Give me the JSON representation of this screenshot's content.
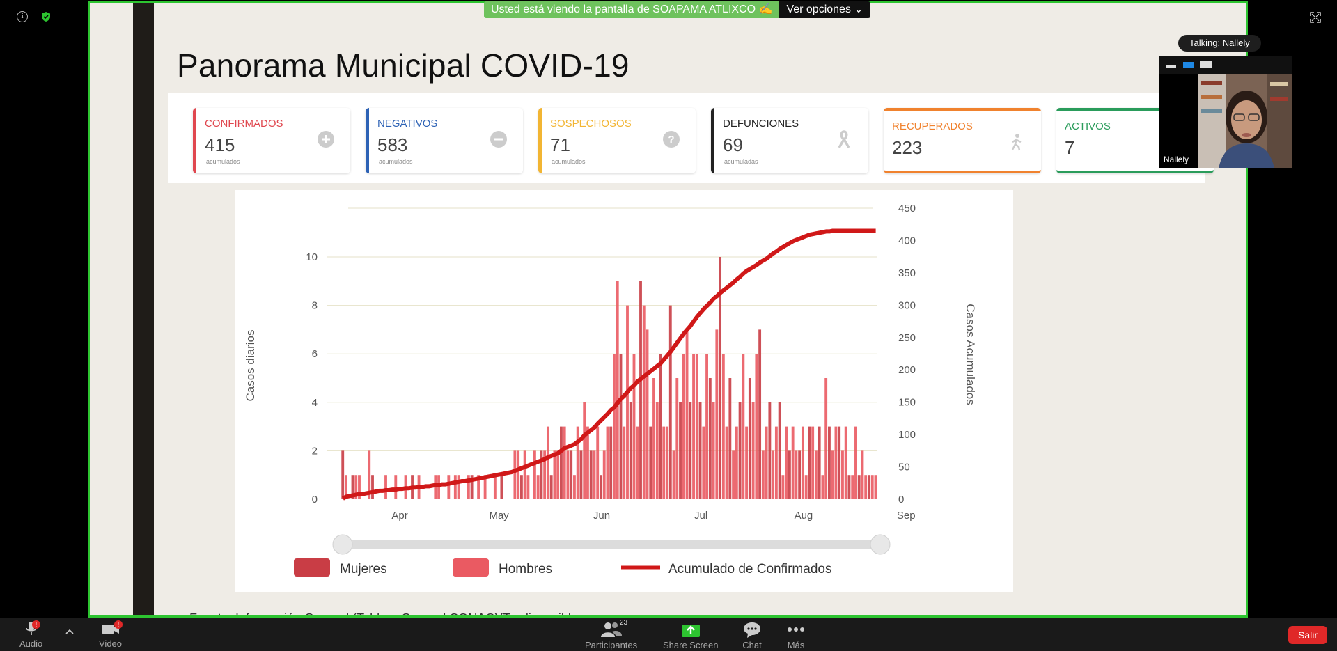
{
  "banner": {
    "text": "Usted está viendo la pantalla de SOAPAMA ATLIXCO",
    "options_label": "Ver opciones"
  },
  "slide": {
    "title": "Panorama Municipal COVID-19",
    "footer": "Fuente: Información General (Tablero General CONACYT - disponible en"
  },
  "cards": [
    {
      "label": "CONFIRMADOS",
      "value": "415",
      "sub": "acumulados",
      "color": "#e0474f",
      "icon": "plus-icon"
    },
    {
      "label": "NEGATIVOS",
      "value": "583",
      "sub": "acumulados",
      "color": "#2d62b5",
      "icon": "minus-icon"
    },
    {
      "label": "SOSPECHOSOS",
      "value": "71",
      "sub": "acumulados",
      "color": "#f2b533",
      "icon": "question-icon"
    },
    {
      "label": "DEFUNCIONES",
      "value": "69",
      "sub": "acumuladas",
      "color": "#222222",
      "icon": "ribbon-icon"
    },
    {
      "label": "RECUPERADOS",
      "value": "223",
      "sub": "",
      "color": "#f0822e",
      "icon": "walking-person-icon"
    },
    {
      "label": "ACTIVOS",
      "value": "7",
      "sub": "",
      "color": "#2a9c5b",
      "icon": ""
    }
  ],
  "chart_data": {
    "type": "bar",
    "title": "",
    "ylabel": "Casos diarios",
    "y2label": "Casos Acumulados",
    "ylim": [
      0,
      11
    ],
    "y2lim": [
      0,
      450
    ],
    "yticks": [
      0,
      2,
      4,
      6,
      8,
      10
    ],
    "y2ticks": [
      0,
      50,
      100,
      150,
      200,
      250,
      300,
      350,
      400,
      450
    ],
    "xticks": [
      "Apr",
      "May",
      "Jun",
      "Jul",
      "Aug",
      "Sep"
    ],
    "grid": true,
    "legend_position": "bottom",
    "series": [
      {
        "name": "Mujeres",
        "color": "#c93d45"
      },
      {
        "name": "Hombres",
        "color": "#ea5a62"
      },
      {
        "name": "Acumulado de Confirmados",
        "color": "#d01818"
      }
    ],
    "daily_cases": [
      2,
      1,
      0,
      1,
      1,
      1,
      0,
      0,
      2,
      1,
      0,
      0,
      0,
      1,
      0,
      0,
      1,
      0,
      0,
      1,
      0,
      1,
      0,
      1,
      0,
      0,
      0,
      0,
      1,
      1,
      0,
      0,
      1,
      0,
      1,
      1,
      0,
      0,
      1,
      1,
      0,
      1,
      0,
      1,
      0,
      0,
      1,
      0,
      1,
      0,
      0,
      0,
      2,
      2,
      1,
      2,
      1,
      0,
      2,
      1,
      2,
      2,
      3,
      1,
      2,
      2,
      3,
      3,
      2,
      2,
      1,
      3,
      2,
      4,
      3,
      2,
      2,
      3,
      1,
      2,
      3,
      3,
      6,
      9,
      6,
      3,
      8,
      4,
      6,
      3,
      9,
      8,
      7,
      3,
      5,
      4,
      6,
      3,
      3,
      8,
      2,
      5,
      4,
      6,
      7,
      4,
      6,
      6,
      4,
      3,
      6,
      5,
      4,
      7,
      10,
      6,
      3,
      5,
      2,
      3,
      4,
      6,
      3,
      5,
      4,
      6,
      7,
      2,
      3,
      4,
      2,
      3,
      4,
      1,
      3,
      2,
      3,
      2,
      2,
      3,
      1,
      3,
      3,
      2,
      3,
      1,
      5,
      3,
      2,
      3,
      3,
      2,
      3,
      1,
      1,
      3,
      1,
      2,
      1,
      1,
      1,
      1
    ],
    "cumulative": [
      1,
      4,
      5,
      6,
      7,
      8,
      8,
      9,
      10,
      11,
      12,
      13,
      13,
      14,
      14,
      15,
      15,
      16,
      16,
      17,
      17,
      18,
      18,
      19,
      19,
      20,
      20,
      21,
      22,
      22,
      23,
      23,
      24,
      25,
      26,
      27,
      28,
      28,
      29,
      30,
      31,
      32,
      33,
      34,
      35,
      36,
      37,
      38,
      39,
      40,
      41,
      42,
      44,
      46,
      48,
      50,
      52,
      54,
      56,
      58,
      60,
      62,
      65,
      67,
      69,
      71,
      75,
      79,
      81,
      83,
      85,
      89,
      93,
      99,
      103,
      107,
      111,
      117,
      122,
      127,
      132,
      138,
      142,
      149,
      155,
      160,
      166,
      172,
      176,
      182,
      186,
      190,
      194,
      198,
      202,
      206,
      210,
      216,
      222,
      228,
      235,
      242,
      249,
      256,
      262,
      268,
      275,
      282,
      288,
      294,
      299,
      304,
      310,
      314,
      319,
      323,
      327,
      331,
      335,
      340,
      344,
      349,
      353,
      356,
      359,
      362,
      366,
      369,
      372,
      376,
      380,
      383,
      387,
      390,
      393,
      396,
      399,
      401,
      403,
      405,
      407,
      409,
      410,
      411,
      412,
      413,
      414,
      414,
      415,
      415,
      415,
      415,
      415,
      415,
      415,
      415,
      415,
      415,
      415,
      415,
      415,
      415
    ],
    "start_date": "2020-03-16"
  },
  "video": {
    "talking": "Talking: Nallely",
    "name": "Nallely"
  },
  "toolbar": {
    "audio": "Audio",
    "video": "Video",
    "participants": "Participantes",
    "participants_count": "23",
    "share": "Share Screen",
    "chat": "Chat",
    "more": "Más",
    "leave": "Salir",
    "audio_badge": "!",
    "video_badge": "!"
  },
  "colors": {
    "share_border": "#2dc430",
    "banner": "#6ec25d",
    "leave": "#e02828"
  }
}
